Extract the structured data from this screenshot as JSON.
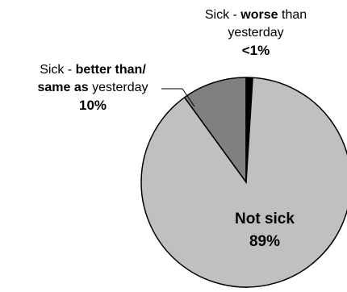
{
  "chart_data": {
    "type": "pie",
    "slices": [
      {
        "label": "Not sick",
        "value": 89,
        "display": "89%",
        "color": "#c0c0c0"
      },
      {
        "label": "Sick - better than/ same as yesterday",
        "value": 10,
        "display": "10%",
        "color": "#808080"
      },
      {
        "label": "Sick - worse than yesterday",
        "value": 1,
        "display": "<1%",
        "color": "#000000"
      }
    ],
    "labels": {
      "worse": {
        "prefix": "Sick - ",
        "bold": "worse",
        "suffix": " than",
        "line2": "yesterday",
        "value": "<1%"
      },
      "better": {
        "prefix": "Sick - ",
        "bold1": "better than/",
        "bold2": "same as",
        "suffix": " yesterday",
        "value": "10%"
      },
      "notsick": {
        "name": "Not sick",
        "value": "89%"
      }
    }
  }
}
